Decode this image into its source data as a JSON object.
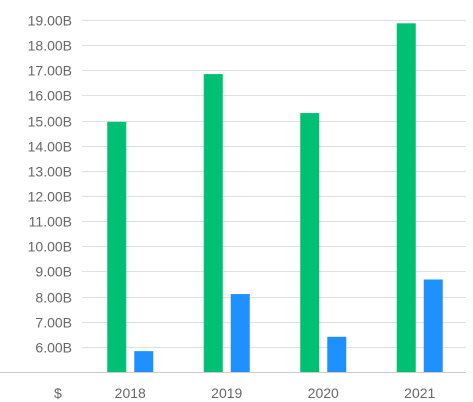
{
  "chart_data": {
    "type": "bar",
    "categories": [
      "2018",
      "2019",
      "2020",
      "2021"
    ],
    "series": [
      {
        "values": [
          14.95,
          16.85,
          15.3,
          18.87
        ]
      },
      {
        "values": [
          5.83,
          8.1,
          6.4,
          8.68
        ]
      }
    ],
    "series_colors": [
      "#00c073",
      "#1e90ff"
    ],
    "y_ticks": [
      6,
      7,
      8,
      9,
      10,
      11,
      12,
      13,
      14,
      15,
      16,
      17,
      18,
      19
    ],
    "y_tick_labels": [
      "6.00B",
      "7.00B",
      "8.00B",
      "9.00B",
      "10.00B",
      "11.00B",
      "12.00B",
      "13.00B",
      "14.00B",
      "15.00B",
      "16.00B",
      "17.00B",
      "18.00B",
      "19.00B"
    ],
    "ylim": [
      5,
      19.4
    ],
    "x_axis_prefix": "$",
    "grid": true,
    "legend": false
  }
}
